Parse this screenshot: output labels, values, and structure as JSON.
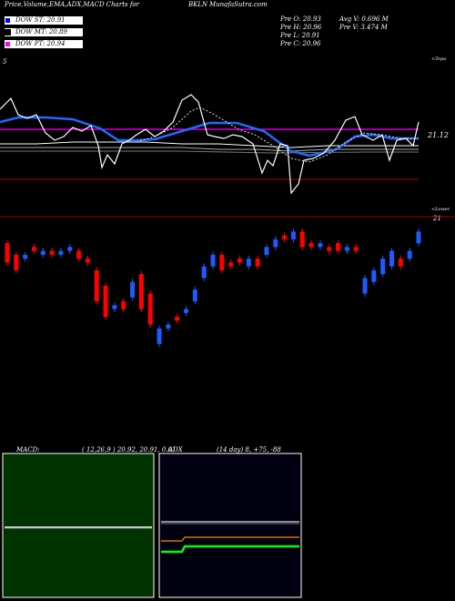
{
  "header": {
    "title_left": "Price,Volume,EMA,ADX,MACD Charts for",
    "ticker": "BKLN",
    "site": "MunafaSutra.com"
  },
  "legend": [
    {
      "label": "DOW ST: 20.91",
      "color": "#0000ff"
    },
    {
      "label": "DOW MT: 20.89",
      "color": "#000000"
    },
    {
      "label": "DOW PT: 20.94",
      "color": "#ff00ff"
    }
  ],
  "quote": {
    "prev_open": "Pre   O: 20.93",
    "prev_high": "Pre   H: 20.96",
    "prev_low": "Pre   L: 20.91",
    "prev_close": "Pre   C: 20.96",
    "avg_volume": "Avg V: 0.696   M",
    "prev_volume": "Pre   V: 3.474   M"
  },
  "top_panel": {
    "corner_left": "5",
    "corner_right": "<Topo",
    "price_label": "21.12",
    "lower_right": "<Lower",
    "lower_value": "21"
  },
  "macd_panel": {
    "label": "MACD:",
    "params": "( 12,26,9 ) 20.92,  20.91,  0.01"
  },
  "adx_panel": {
    "label": "ADX",
    "params": "(14  day) 8,  +75,  -88"
  },
  "colors": {
    "up": "#1e5bff",
    "down": "#ff0000",
    "ema_fast": "#1e6bff",
    "ema_mid": "#ffffff",
    "pt_line": "#ff00ff",
    "lower_line": "#b00000",
    "macd_bg": "#003300",
    "adx_plus": "#ffffff",
    "adx_minus": "#ff8800",
    "adx": "#00ff00"
  },
  "chart_data": [
    {
      "type": "candlestick",
      "name": "price",
      "candles": [
        {
          "dir": "down",
          "o": 20.93,
          "c": 20.88
        },
        {
          "dir": "down",
          "o": 20.9,
          "c": 20.86
        },
        {
          "dir": "up",
          "o": 20.89,
          "c": 20.9
        },
        {
          "dir": "down",
          "o": 20.92,
          "c": 20.91
        },
        {
          "dir": "up",
          "o": 20.9,
          "c": 20.91
        },
        {
          "dir": "down",
          "o": 20.91,
          "c": 20.9
        },
        {
          "dir": "up",
          "o": 20.9,
          "c": 20.91
        },
        {
          "dir": "up",
          "o": 20.91,
          "c": 20.92
        },
        {
          "dir": "down",
          "o": 20.91,
          "c": 20.89
        },
        {
          "dir": "down",
          "o": 20.89,
          "c": 20.88
        },
        {
          "dir": "down",
          "o": 20.86,
          "c": 20.78
        },
        {
          "dir": "down",
          "o": 20.82,
          "c": 20.74
        },
        {
          "dir": "up",
          "o": 20.76,
          "c": 20.77
        },
        {
          "dir": "down",
          "o": 20.78,
          "c": 20.76
        },
        {
          "dir": "up",
          "o": 20.79,
          "c": 20.83
        },
        {
          "dir": "down",
          "o": 20.85,
          "c": 20.76
        },
        {
          "dir": "down",
          "o": 20.8,
          "c": 20.72
        },
        {
          "dir": "up",
          "o": 20.67,
          "c": 20.71
        },
        {
          "dir": "up",
          "o": 20.71,
          "c": 20.72
        },
        {
          "dir": "down",
          "o": 20.74,
          "c": 20.73
        },
        {
          "dir": "up",
          "o": 20.75,
          "c": 20.76
        },
        {
          "dir": "up",
          "o": 20.78,
          "c": 20.81
        },
        {
          "dir": "up",
          "o": 20.84,
          "c": 20.87
        },
        {
          "dir": "up",
          "o": 20.87,
          "c": 20.9
        },
        {
          "dir": "down",
          "o": 20.9,
          "c": 20.86
        },
        {
          "dir": "down",
          "o": 20.88,
          "c": 20.87
        },
        {
          "dir": "down",
          "o": 20.89,
          "c": 20.88
        },
        {
          "dir": "up",
          "o": 20.87,
          "c": 20.89
        },
        {
          "dir": "down",
          "o": 20.89,
          "c": 20.87
        },
        {
          "dir": "up",
          "o": 20.9,
          "c": 20.92
        },
        {
          "dir": "up",
          "o": 20.92,
          "c": 20.94
        },
        {
          "dir": "down",
          "o": 20.95,
          "c": 20.94
        },
        {
          "dir": "up",
          "o": 20.94,
          "c": 20.96
        },
        {
          "dir": "down",
          "o": 20.96,
          "c": 20.92
        },
        {
          "dir": "down",
          "o": 20.93,
          "c": 20.92
        },
        {
          "dir": "up",
          "o": 20.92,
          "c": 20.93
        },
        {
          "dir": "down",
          "o": 20.92,
          "c": 20.91
        },
        {
          "dir": "down",
          "o": 20.93,
          "c": 20.91
        },
        {
          "dir": "up",
          "o": 20.91,
          "c": 20.92
        },
        {
          "dir": "down",
          "o": 20.92,
          "c": 20.91
        },
        {
          "dir": "up",
          "o": 20.8,
          "c": 20.84
        },
        {
          "dir": "up",
          "o": 20.83,
          "c": 20.86
        },
        {
          "dir": "up",
          "o": 20.85,
          "c": 20.89
        },
        {
          "dir": "up",
          "o": 20.87,
          "c": 20.91
        },
        {
          "dir": "down",
          "o": 20.89,
          "c": 20.87
        },
        {
          "dir": "up",
          "o": 20.89,
          "c": 20.91
        },
        {
          "dir": "up",
          "o": 20.93,
          "c": 20.96
        }
      ],
      "ema_lines": [
        "DOW ST",
        "DOW MT",
        "DOW PT"
      ]
    },
    {
      "type": "line",
      "name": "macd",
      "series": [
        {
          "name": "MACD",
          "values": [
            0.0,
            0.0,
            0.0,
            0.0,
            0.0,
            0.0,
            0.0,
            0.0,
            0.0,
            0.0,
            0.0,
            0.0,
            0.01
          ]
        },
        {
          "name": "Signal",
          "values": [
            0.0,
            0.0,
            0.0,
            0.0,
            0.0,
            0.0,
            0.0,
            0.0,
            0.0,
            0.0,
            0.0,
            0.0,
            0.0
          ]
        }
      ]
    },
    {
      "type": "line",
      "name": "adx",
      "series": [
        {
          "name": "+DI",
          "values": [
            75,
            75,
            75,
            75,
            75,
            75,
            75,
            75,
            75
          ]
        },
        {
          "name": "-DI",
          "values": [
            88,
            88,
            88,
            88,
            88,
            88,
            88,
            88,
            88
          ]
        },
        {
          "name": "ADX",
          "values": [
            8,
            8,
            8,
            8,
            8,
            8,
            8,
            8,
            8
          ]
        }
      ]
    }
  ]
}
